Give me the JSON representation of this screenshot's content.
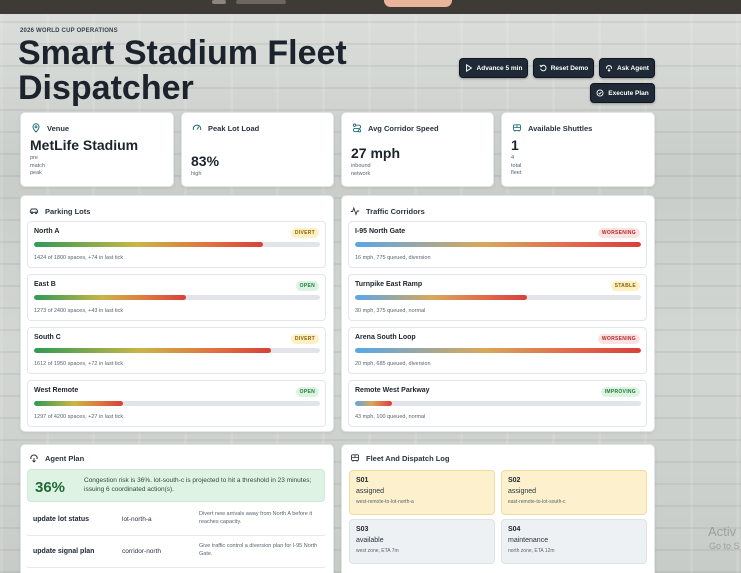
{
  "header": {
    "eyebrow": "2026 WORLD CUP OPERATIONS",
    "title": "Smart Stadium Fleet Dispatcher"
  },
  "actions": {
    "advance": "Advance 5 min",
    "reset": "Reset Demo",
    "ask": "Ask Agent",
    "execute": "Execute Plan"
  },
  "stats": [
    {
      "label": "Venue",
      "value": "MetLife Stadium",
      "sub": [
        "pre",
        "match",
        "peak"
      ],
      "icon": "pin-icon"
    },
    {
      "label": "Peak Lot Load",
      "value": "83%",
      "sub": [
        "high"
      ],
      "icon": "gauge-icon"
    },
    {
      "label": "Avg Corridor Speed",
      "value": "27 mph",
      "sub": [
        "inbound",
        "network"
      ],
      "icon": "route-icon"
    },
    {
      "label": "Available Shuttles",
      "value": "1",
      "sub": [
        "4",
        "total",
        "fleet"
      ],
      "icon": "bus-icon"
    }
  ],
  "parking": {
    "title": "Parking Lots",
    "lots": [
      {
        "name": "North A",
        "badge": "DIVERT",
        "fill": 0.8,
        "note": "1424 of 1800 spaces, +74 in last tick"
      },
      {
        "name": "East B",
        "badge": "OPEN",
        "fill": 0.53,
        "note": "1273 of 2400 spaces, +43 in last tick"
      },
      {
        "name": "South C",
        "badge": "DIVERT",
        "fill": 0.83,
        "note": "1612 of 1950 spaces, +72 in last tick"
      },
      {
        "name": "West Remote",
        "badge": "OPEN",
        "fill": 0.31,
        "note": "1297 of 4200 spaces, +27 in last tick"
      }
    ]
  },
  "corridors": {
    "title": "Traffic Corridors",
    "items": [
      {
        "name": "I-95 North Gate",
        "badge": "WORSENING",
        "fill": 1.0,
        "note": "16 mph, 775 queued, diversion"
      },
      {
        "name": "Turnpike East Ramp",
        "badge": "STABLE",
        "fill": 0.6,
        "note": "30 mph, 375 queued, normal"
      },
      {
        "name": "Arena South Loop",
        "badge": "WORSENING",
        "fill": 1.0,
        "note": "20 mph, 685 queued, diversion"
      },
      {
        "name": "Remote West Parkway",
        "badge": "IMPROVING",
        "fill": 0.13,
        "note": "43 mph, 100 queued, normal"
      }
    ]
  },
  "agent": {
    "title": "Agent Plan",
    "risk": "36%",
    "summary": "Congestion risk is 36%. lot-south-c is projected to hit a threshold in 23 minutes; issuing 6 coordinated action(s).",
    "steps": [
      {
        "action": "update lot status",
        "target": "lot-north-a",
        "desc": "Divert new arrivals away from North A before it reaches capacity."
      },
      {
        "action": "update signal plan",
        "target": "corridor-north",
        "desc": "Give traffic control a diversion plan for I-95 North Gate."
      }
    ]
  },
  "fleet": {
    "title": "Fleet And Dispatch Log",
    "units": [
      {
        "id": "S01",
        "status": "assigned",
        "note": "west-remote-to-lot-north-a"
      },
      {
        "id": "S02",
        "status": "assigned",
        "note": "east-remote-to-lot-south-c"
      },
      {
        "id": "S03",
        "status": "available",
        "note": "west zone, ETA 7m"
      },
      {
        "id": "S04",
        "status": "maintenance",
        "note": "north zone, ETA 12m"
      }
    ]
  },
  "watermark": {
    "line1": "Activ",
    "line2": "Go to S"
  }
}
